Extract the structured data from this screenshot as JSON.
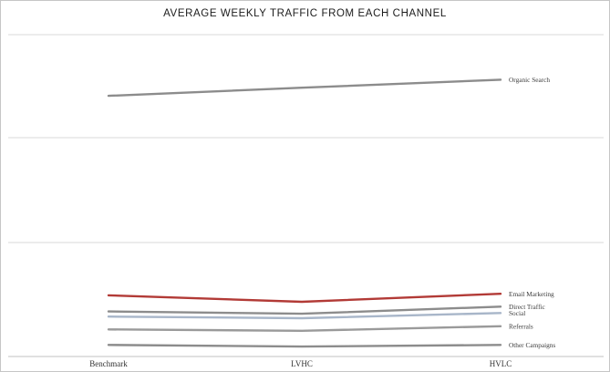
{
  "title": "AVERAGE WEEKLY TRAFFIC FROM EACH CHANNEL",
  "chart_data": {
    "type": "line",
    "title": "AVERAGE WEEKLY TRAFFIC FROM EACH CHANNEL",
    "categories": [
      "Benchmark",
      "LVHC",
      "HVLC"
    ],
    "series": [
      {
        "name": "Organic Search",
        "values": [
          81,
          83.5,
          86
        ],
        "color": "#8c8c8c"
      },
      {
        "name": "Email Marketing",
        "values": [
          19,
          17,
          19.5
        ],
        "color": "#b23a36"
      },
      {
        "name": "Direct Traffic",
        "values": [
          14,
          13.3,
          15.5
        ],
        "color": "#8c8c8c"
      },
      {
        "name": "Social",
        "values": [
          12.4,
          11.9,
          13.5
        ],
        "color": "#a8b6c9"
      },
      {
        "name": "Referrals",
        "values": [
          8.4,
          8,
          9.4
        ],
        "color": "#9a9a9a"
      },
      {
        "name": "Other Campaigns",
        "values": [
          3.6,
          3.1,
          3.6
        ],
        "color": "#8c8c8c"
      }
    ],
    "xlabel": "",
    "ylabel": "",
    "ylim": [
      0,
      100
    ],
    "grid": "horizontal",
    "legend": "labels at right end of each line",
    "note": "no numeric axis labels shown; values estimated on 0-100 relative scale"
  }
}
